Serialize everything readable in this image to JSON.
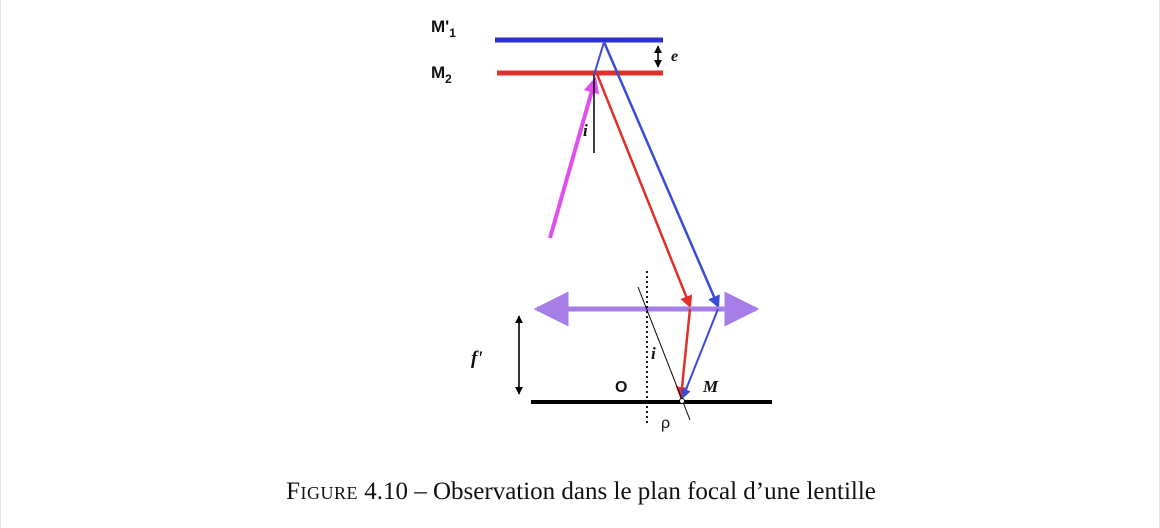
{
  "figure": {
    "labels": {
      "mirror_m1_prime": "M'",
      "mirror_m1_prime_sub": "1",
      "mirror_m2": "M",
      "mirror_m2_sub": "2",
      "thickness": "e",
      "incidence_angle_top": "i",
      "incidence_angle_bottom": "i",
      "focal_length": "f'",
      "center": "O",
      "point": "M",
      "radius": "ρ"
    },
    "colors": {
      "mirror_m1_prime": "#2b2fd0",
      "mirror_m2": "#e0302a",
      "incident_ray": "#e14ef0",
      "ray_red": "#e0302a",
      "ray_blue": "#3a4bd6",
      "lens": "#a77de8",
      "focal_plane": "#000000"
    }
  },
  "caption": {
    "prefix": "Figure",
    "number": "4.10",
    "separator": "–",
    "text": "Observation dans le plan focal d’une lentille"
  }
}
